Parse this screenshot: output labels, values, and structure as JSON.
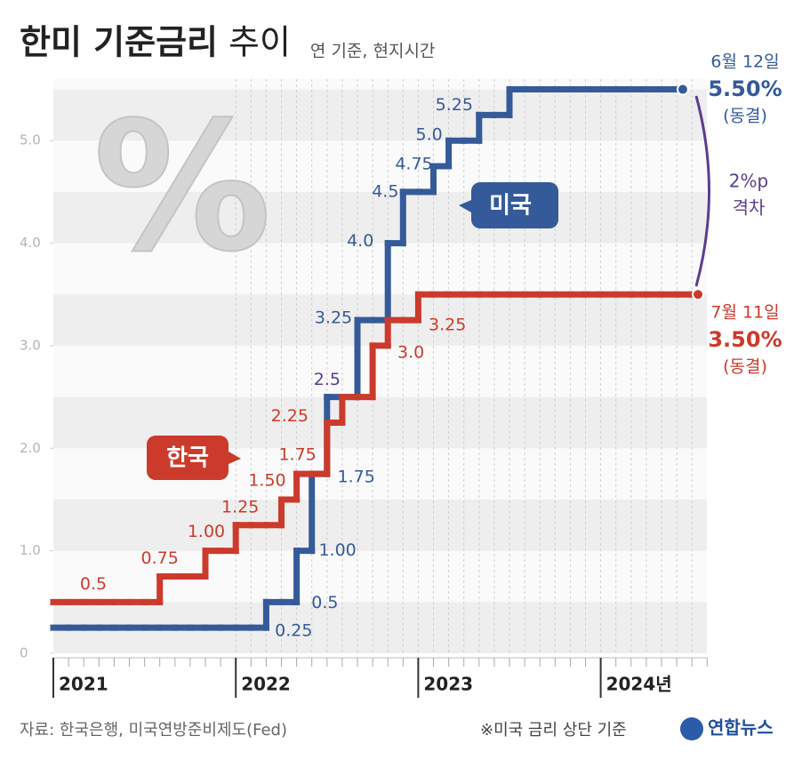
{
  "title": "한미 기준금리",
  "title_light": "추이",
  "subtitle": "연 기준, 현지시간",
  "decoration": "%",
  "chart_data": {
    "type": "step",
    "categories": [
      "2021",
      null,
      null,
      null,
      null,
      null,
      null,
      null,
      null,
      null,
      null,
      null,
      "2022",
      null,
      null,
      null,
      null,
      null,
      null,
      null,
      null,
      null,
      null,
      null,
      "2023",
      null,
      null,
      null,
      null,
      null,
      null,
      null,
      null,
      null,
      null,
      null,
      "2024년",
      null,
      null,
      null,
      null,
      null,
      null
    ],
    "series": [
      {
        "name": "미국",
        "color": "#355a9a",
        "values": [
          0.25,
          0.25,
          0.25,
          0.25,
          0.25,
          0.25,
          0.25,
          0.25,
          0.25,
          0.25,
          0.25,
          0.25,
          0.25,
          0.25,
          0.5,
          0.5,
          1,
          1.75,
          2.5,
          2.5,
          3.25,
          3.25,
          4,
          4.5,
          4.5,
          4.75,
          5,
          5,
          5.25,
          5.25,
          5.5,
          5.5,
          5.5,
          5.5,
          5.5,
          5.5,
          5.5,
          5.5,
          5.5,
          5.5,
          5.5,
          5.5,
          null
        ],
        "value_labels": [
          null,
          null,
          null,
          null,
          null,
          null,
          null,
          null,
          null,
          null,
          null,
          null,
          null,
          "0.25",
          "0.5",
          null,
          "1.00",
          "1.75",
          null,
          null,
          "3.25",
          null,
          "4.0",
          "4.5",
          null,
          "4.75",
          "5.0",
          null,
          "5.25",
          null,
          null,
          null,
          null,
          null,
          null,
          null,
          null,
          null,
          null,
          null,
          null,
          null,
          null
        ],
        "end_note": {
          "date": "6월 12일",
          "rate": "5.50%",
          "status": "(동결)"
        }
      },
      {
        "name": "한국",
        "color": "#cc3a2c",
        "values": [
          0.5,
          0.5,
          0.5,
          0.5,
          0.5,
          0.5,
          0.5,
          0.75,
          0.75,
          0.75,
          1,
          1,
          1.25,
          1.25,
          1.25,
          1.5,
          1.75,
          1.75,
          2.25,
          2.5,
          2.5,
          3,
          3.25,
          3.25,
          3.5,
          3.5,
          3.5,
          3.5,
          3.5,
          3.5,
          3.5,
          3.5,
          3.5,
          3.5,
          3.5,
          3.5,
          3.5,
          3.5,
          3.5,
          3.5,
          3.5,
          3.5,
          3.5
        ],
        "value_labels": [
          "0.5",
          null,
          null,
          null,
          null,
          null,
          null,
          "0.75",
          null,
          null,
          "1.00",
          null,
          "1.25",
          null,
          null,
          "1.50",
          "1.75",
          null,
          "2.25",
          "2.5",
          null,
          "3.0",
          "3.25",
          null,
          null,
          null,
          null,
          null,
          null,
          null,
          null,
          null,
          null,
          null,
          null,
          null,
          null,
          null,
          null,
          null,
          null,
          null,
          null
        ],
        "end_note": {
          "date": "7월 11일",
          "rate": "3.50%",
          "status": "(동결)"
        }
      }
    ],
    "ylim": [
      0,
      5.6
    ],
    "yticks": [
      0,
      {
        "value": 1,
        "label": "1.0"
      },
      {
        "value": 2,
        "label": "2.0"
      },
      {
        "value": 3,
        "label": "3.0"
      },
      {
        "value": 4,
        "label": "4.0"
      },
      {
        "value": 5,
        "label": "5.0"
      }
    ],
    "grid": true,
    "gap": {
      "value": "2%p",
      "label": "격차"
    }
  },
  "source": "자료: 한국은행, 미국연방준비제도(Fed)",
  "note": "※미국 금리 상단 기준",
  "logo": "연합뉴스"
}
